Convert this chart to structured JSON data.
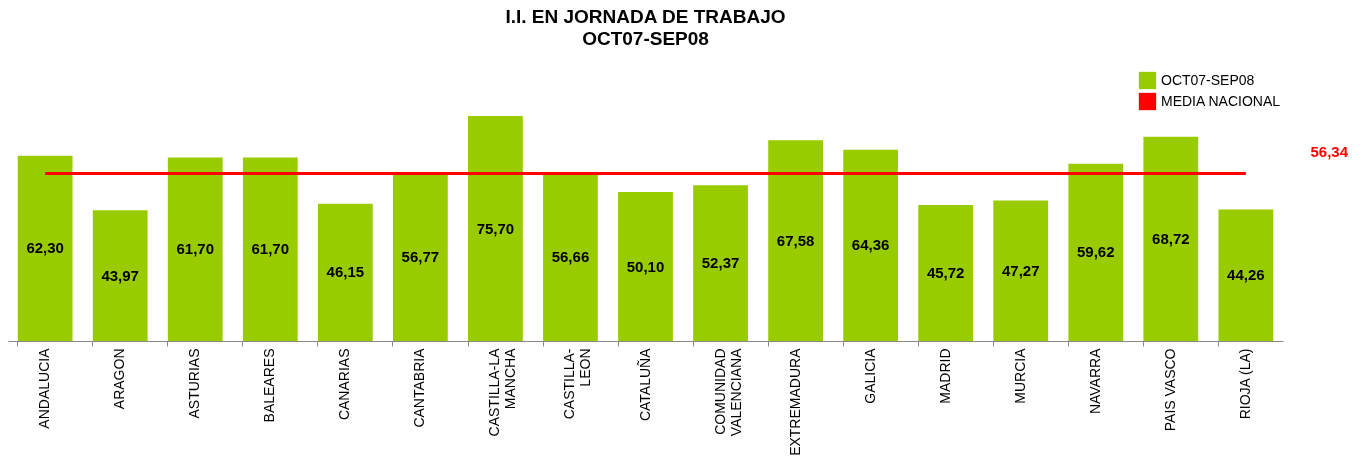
{
  "chart_data": {
    "type": "bar",
    "title": "I.I. EN JORNADA DE TRABAJO",
    "subtitle": "OCT07-SEP08",
    "categories": [
      "ANDALUCIA",
      "ARAGON",
      "ASTURIAS",
      "BALEARES",
      "CANARIAS",
      "CANTABRIA",
      "CASTILLA-LA\nMANCHA",
      "CASTILLA-\nLEON",
      "CATALUÑA",
      "COMUNIDAD\nVALENCIANA",
      "EXTREMADURA",
      "GALICIA",
      "MADRID",
      "MURCIA",
      "NAVARRA",
      "PAIS VASCO",
      "RIOJA (LA)"
    ],
    "series": [
      {
        "name": "OCT07-SEP08",
        "color": "#99cc00",
        "values": [
          62.3,
          43.97,
          61.7,
          61.7,
          46.15,
          56.77,
          75.7,
          56.66,
          50.1,
          52.37,
          67.58,
          64.36,
          45.72,
          47.27,
          59.62,
          68.72,
          44.26
        ],
        "value_labels": [
          "62,30",
          "43,97",
          "61,70",
          "61,70",
          "46,15",
          "56,77",
          "75,70",
          "56,66",
          "50,10",
          "52,37",
          "67,58",
          "64,36",
          "45,72",
          "47,27",
          "59,62",
          "68,72",
          "44,26"
        ]
      }
    ],
    "ref_lines": [
      {
        "axis": "y",
        "value": 56.34,
        "label": "MEDIA NACIONAL",
        "color": "#ff0000"
      }
    ],
    "annotations": [
      "56,34"
    ],
    "legend": "top right",
    "grid": false
  }
}
